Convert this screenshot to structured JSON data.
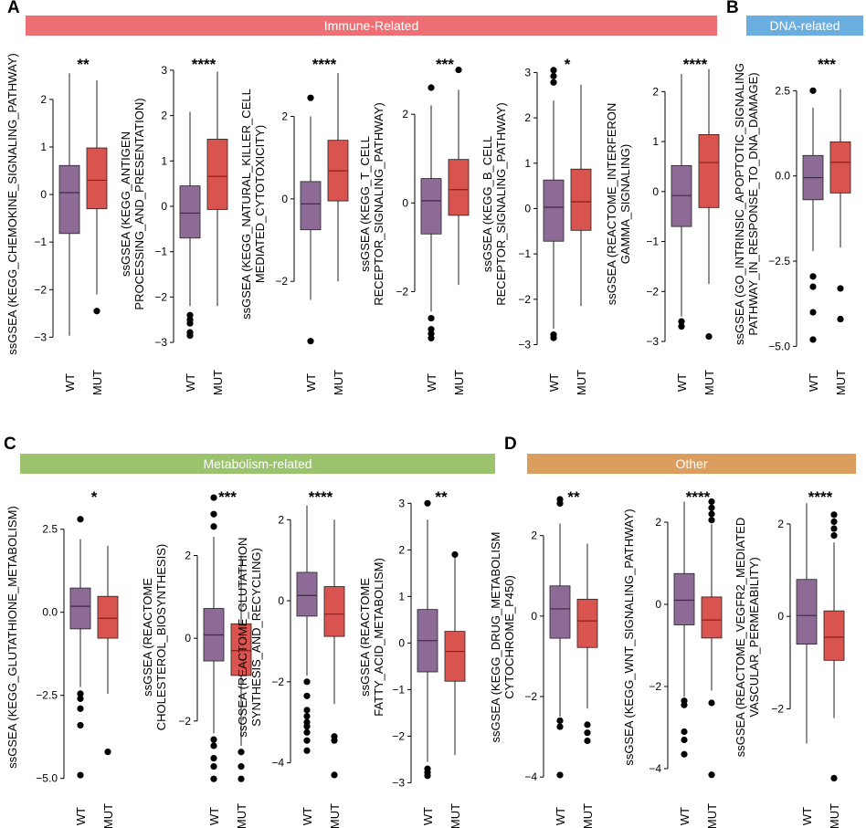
{
  "panels": [
    {
      "letter": "A",
      "banner": "Immune-Related",
      "color": "#ef7074"
    },
    {
      "letter": "B",
      "banner": "DNA-related",
      "color": "#6aaee0"
    },
    {
      "letter": "C",
      "banner": "Metabolism-related",
      "color": "#9bc26c"
    },
    {
      "letter": "D",
      "banner": "Other",
      "color": "#dc9e5e"
    }
  ],
  "colors": {
    "wt": "#8e6b96",
    "mut": "#d9534f",
    "median_wt": "#3d2a44",
    "median_mut": "#8b1e1c"
  },
  "chart_data": [
    {
      "type": "box",
      "ylabel": [
        "ssGSEA (KEGG_CHEMOKINE_SIGNALING_PATHWAY)"
      ],
      "categories": [
        "WT",
        "MUT"
      ],
      "significance": "**",
      "ylim": [
        -3.3,
        2.9
      ],
      "ticks": [
        -3,
        -2,
        -1,
        0,
        1,
        2
      ],
      "ticklabels": [
        "−3",
        "−2",
        "−1",
        "0",
        "1",
        "2"
      ],
      "series": [
        {
          "name": "WT",
          "lower": -2.97,
          "q1": -0.82,
          "median": 0.04,
          "q3": 0.61,
          "upper": 2.55,
          "outliers": []
        },
        {
          "name": "MUT",
          "lower": -2.1,
          "q1": -0.3,
          "median": 0.3,
          "q3": 0.98,
          "upper": 2.4,
          "outliers": [
            -2.45
          ]
        }
      ]
    },
    {
      "type": "box",
      "ylabel": [
        "ssGSEA (KEGG_ANTIGEN",
        "PROCESSING_AND_PRESENTATION)"
      ],
      "categories": [
        "WT",
        "MUT"
      ],
      "significance": "****",
      "ylim": [
        -3.2,
        3.3
      ],
      "ticks": [
        -3,
        -2,
        -1,
        0,
        1,
        2,
        3
      ],
      "ticklabels": [
        "−3",
        "−2",
        "−1",
        "0",
        "1",
        "2",
        "3"
      ],
      "series": [
        {
          "name": "WT",
          "lower": -2.2,
          "q1": -0.7,
          "median": -0.15,
          "q3": 0.45,
          "upper": 2.08,
          "outliers": [
            -2.4,
            -2.5,
            -2.58,
            -2.78,
            -2.85
          ]
        },
        {
          "name": "MUT",
          "lower": -2.2,
          "q1": -0.07,
          "median": 0.66,
          "q3": 1.48,
          "upper": 2.97,
          "outliers": []
        }
      ]
    },
    {
      "type": "box",
      "ylabel": [
        "ssGSEA (KEGG_NATURAL_KILLER_CELL",
        "MEDIATED_CYTOTOXICITY)"
      ],
      "categories": [
        "WT",
        "MUT"
      ],
      "significance": "****",
      "ylim": [
        -3.7,
        3.45
      ],
      "ticks": [
        -2,
        0,
        2
      ],
      "ticklabels": [
        "−2",
        "0",
        "2"
      ],
      "series": [
        {
          "name": "WT",
          "lower": -2.45,
          "q1": -0.75,
          "median": -0.12,
          "q3": 0.42,
          "upper": 2.0,
          "outliers": [
            2.45,
            -3.45
          ]
        },
        {
          "name": "MUT",
          "lower": -2.0,
          "q1": -0.05,
          "median": 0.68,
          "q3": 1.42,
          "upper": 3.05,
          "outliers": []
        }
      ]
    },
    {
      "type": "box",
      "ylabel": [
        "ssGSEA (KEGG_T_CELL",
        "RECEPTOR_SIGNALING_PATHWAY)"
      ],
      "categories": [
        "WT",
        "MUT"
      ],
      "significance": "***",
      "ylim": [
        -3.35,
        3.3
      ],
      "ticks": [
        -2,
        0,
        2
      ],
      "ticklabels": [
        "−2",
        "0",
        "2"
      ],
      "series": [
        {
          "name": "WT",
          "lower": -2.45,
          "q1": -0.7,
          "median": 0.05,
          "q3": 0.55,
          "upper": 2.2,
          "outliers": [
            2.6,
            -2.6,
            -2.85,
            -2.95,
            -3.05
          ]
        },
        {
          "name": "MUT",
          "lower": -1.85,
          "q1": -0.28,
          "median": 0.3,
          "q3": 0.98,
          "upper": 2.55,
          "outliers": [
            3.0
          ]
        }
      ]
    },
    {
      "type": "box",
      "ylabel": [
        "ssGSEA (KEGG_B_CELL",
        "RECEPTOR_SIGNALING_PATHWAY)"
      ],
      "categories": [
        "WT",
        "MUT"
      ],
      "significance": "*",
      "ylim": [
        -3.15,
        3.35
      ],
      "ticks": [
        -3,
        -2,
        -1,
        0,
        1,
        2,
        3
      ],
      "ticklabels": [
        "−3",
        "−2",
        "−1",
        "0",
        "1",
        "2",
        "3"
      ],
      "series": [
        {
          "name": "WT",
          "lower": -2.65,
          "q1": -0.72,
          "median": 0.03,
          "q3": 0.63,
          "upper": 2.38,
          "outliers": [
            3.05,
            2.92,
            2.78,
            -2.78,
            -2.85
          ]
        },
        {
          "name": "MUT",
          "lower": -2.15,
          "q1": -0.48,
          "median": 0.15,
          "q3": 0.87,
          "upper": 2.73,
          "outliers": []
        }
      ]
    },
    {
      "type": "box",
      "ylabel": [
        "ssGSEA (REACTOME_INTERFERON",
        "GAMMA_SIGNALING)"
      ],
      "categories": [
        "WT",
        "MUT"
      ],
      "significance": "****",
      "ylim": [
        -3.2,
        2.7
      ],
      "ticks": [
        -3,
        -2,
        -1,
        0,
        1,
        2
      ],
      "ticklabels": [
        "−3",
        "−2",
        "−1",
        "0",
        "1",
        "2"
      ],
      "series": [
        {
          "name": "WT",
          "lower": -2.5,
          "q1": -0.7,
          "median": -0.08,
          "q3": 0.52,
          "upper": 2.35,
          "outliers": [
            -2.6,
            -2.7
          ]
        },
        {
          "name": "MUT",
          "lower": -1.85,
          "q1": -0.32,
          "median": 0.58,
          "q3": 1.14,
          "upper": 2.45,
          "outliers": [
            -2.9
          ]
        }
      ]
    },
    {
      "type": "box",
      "ylabel": [
        "ssGSEA (GO_INTRINSIC_APOPTOTIC_SIGNALING",
        "PATHWAY_IN_RESPONSE_TO_DNA_DAMAGE)"
      ],
      "categories": [
        "WT",
        "MUT"
      ],
      "significance": "***",
      "ylim": [
        -5.15,
        3.5
      ],
      "ticks": [
        -5.0,
        -2.5,
        0.0,
        2.5
      ],
      "ticklabels": [
        "−5.0",
        "−2.5",
        "0.0",
        "2.5"
      ],
      "series": [
        {
          "name": "WT",
          "lower": -2.2,
          "q1": -0.7,
          "median": -0.05,
          "q3": 0.6,
          "upper": 2.0,
          "outliers": [
            2.5,
            -2.95,
            -3.25,
            -4.0,
            -4.8
          ]
        },
        {
          "name": "MUT",
          "lower": -2.1,
          "q1": -0.5,
          "median": 0.4,
          "q3": 1.0,
          "upper": 2.55,
          "outliers": [
            -3.3,
            -4.2
          ]
        }
      ]
    },
    {
      "type": "box",
      "ylabel": [
        "ssGSEA (KEGG_GLUTATHIONE_METABOLISM)"
      ],
      "categories": [
        "WT",
        "MUT"
      ],
      "significance": "*",
      "ylim": [
        -5.2,
        3.7
      ],
      "ticks": [
        -5.0,
        -2.5,
        0.0,
        2.5
      ],
      "ticklabels": [
        "−5.0",
        "−2.5",
        "0.0",
        "2.5"
      ],
      "series": [
        {
          "name": "WT",
          "lower": -2.25,
          "q1": -0.5,
          "median": 0.18,
          "q3": 0.73,
          "upper": 2.2,
          "outliers": [
            2.8,
            -2.45,
            -2.6,
            -2.9,
            -3.4,
            -4.9
          ]
        },
        {
          "name": "MUT",
          "lower": -2.45,
          "q1": -0.78,
          "median": -0.18,
          "q3": 0.48,
          "upper": 2.0,
          "outliers": [
            -4.2
          ]
        }
      ]
    },
    {
      "type": "box",
      "ylabel": [
        "ssGSEA (REACTOME",
        "CHOLESTEROL_BIOSYNTHESIS)"
      ],
      "categories": [
        "WT",
        "MUT"
      ],
      "significance": "***",
      "ylim": [
        -3.55,
        3.6
      ],
      "ticks": [
        -2,
        0,
        2
      ],
      "ticklabels": [
        "−2",
        "0",
        "2"
      ],
      "series": [
        {
          "name": "WT",
          "lower": -2.3,
          "q1": -0.55,
          "median": 0.08,
          "q3": 0.72,
          "upper": 2.45,
          "outliers": [
            3.4,
            3.0,
            2.7,
            -2.45,
            -2.6,
            -2.9,
            -3.1,
            -3.4
          ]
        },
        {
          "name": "MUT",
          "lower": -2.6,
          "q1": -0.9,
          "median": -0.3,
          "q3": 0.35,
          "upper": 2.0,
          "outliers": [
            -2.75,
            -3.1,
            -3.4
          ]
        }
      ]
    },
    {
      "type": "box",
      "ylabel": [
        "ssGSEA (REACTOME_GLUTATHION",
        "SYNTHESIS_AND_RECYCLING)"
      ],
      "categories": [
        "WT",
        "MUT"
      ],
      "significance": "****",
      "ylim": [
        -4.55,
        2.75
      ],
      "ticks": [
        -4,
        -2,
        0,
        2
      ],
      "ticklabels": [
        "−4",
        "−2",
        "0",
        "2"
      ],
      "series": [
        {
          "name": "WT",
          "lower": -1.85,
          "q1": -0.38,
          "median": 0.13,
          "q3": 0.7,
          "upper": 2.35,
          "outliers": [
            -2.0,
            -2.35,
            -2.7,
            -2.85,
            -3.0,
            -3.1,
            -3.25,
            -3.45,
            -3.7
          ]
        },
        {
          "name": "MUT",
          "lower": -2.55,
          "q1": -0.88,
          "median": -0.33,
          "q3": 0.35,
          "upper": 2.0,
          "outliers": [
            -3.35,
            -3.45,
            -4.3
          ]
        }
      ]
    },
    {
      "type": "box",
      "ylabel": [
        "ssGSEA (REACTOME",
        "FATTY_ACID_METABOLISM)"
      ],
      "categories": [
        "WT",
        "MUT"
      ],
      "significance": "**",
      "ylim": [
        -3.05,
        3.3
      ],
      "ticks": [
        -3,
        -2,
        -1,
        0,
        1,
        2,
        3
      ],
      "ticklabels": [
        "−3",
        "−2",
        "−1",
        "0",
        "1",
        "2",
        "3"
      ],
      "series": [
        {
          "name": "WT",
          "lower": -2.55,
          "q1": -0.62,
          "median": 0.05,
          "q3": 0.72,
          "upper": 2.65,
          "outliers": [
            3.0,
            -2.7,
            -2.78,
            -2.85
          ]
        },
        {
          "name": "MUT",
          "lower": -2.4,
          "q1": -0.82,
          "median": -0.18,
          "q3": 0.25,
          "upper": 1.85,
          "outliers": [
            1.9
          ]
        }
      ]
    },
    {
      "type": "box",
      "ylabel": [
        "ssGSEA (KEGG_DRUG_METABOLISM",
        "CYTOCHROME_P450)"
      ],
      "categories": [
        "WT",
        "MUT"
      ],
      "significance": "**",
      "ylim": [
        -4.2,
        3.15
      ],
      "ticks": [
        -4,
        -2,
        0,
        2
      ],
      "ticklabels": [
        "−4",
        "−2",
        "0",
        "2"
      ],
      "series": [
        {
          "name": "WT",
          "lower": -2.5,
          "q1": -0.55,
          "median": 0.18,
          "q3": 0.75,
          "upper": 2.3,
          "outliers": [
            2.9,
            2.8,
            -2.6,
            -2.75,
            -3.95
          ]
        },
        {
          "name": "MUT",
          "lower": -2.3,
          "q1": -0.78,
          "median": -0.12,
          "q3": 0.42,
          "upper": 1.8,
          "outliers": [
            -2.7,
            -2.9,
            -3.1
          ]
        }
      ]
    },
    {
      "type": "box",
      "ylabel": [
        "ssGSEA (KEGG_WNT_SIGNALING_PATHWAY)"
      ],
      "categories": [
        "WT",
        "MUT"
      ],
      "significance": "****",
      "ylim": [
        -4.4,
        2.8
      ],
      "ticks": [
        -4,
        -2,
        0,
        2
      ],
      "ticklabels": [
        "−4",
        "−2",
        "0",
        "2"
      ],
      "series": [
        {
          "name": "WT",
          "lower": -2.25,
          "q1": -0.5,
          "median": 0.1,
          "q3": 0.75,
          "upper": 2.5,
          "outliers": [
            -2.35,
            -2.45,
            -3.1,
            -3.3,
            -3.65
          ]
        },
        {
          "name": "MUT",
          "lower": -2.1,
          "q1": -0.82,
          "median": -0.38,
          "q3": 0.18,
          "upper": 1.95,
          "outliers": [
            2.5,
            2.35,
            2.2,
            2.05,
            -2.4,
            -4.15
          ]
        }
      ]
    },
    {
      "type": "box",
      "ylabel": [
        "ssGSEA (REACTOME_VEGFR2_MEDIATED",
        "VASCULAR_PERMEABILITY)"
      ],
      "categories": [
        "WT",
        "MUT"
      ],
      "significance": "****",
      "ylim": [
        -3.65,
        2.75
      ],
      "ticks": [
        -2,
        0,
        2
      ],
      "ticklabels": [
        "−2",
        "0",
        "2"
      ],
      "series": [
        {
          "name": "WT",
          "lower": -2.75,
          "q1": -0.6,
          "median": 0.02,
          "q3": 0.8,
          "upper": 2.45,
          "outliers": []
        },
        {
          "name": "MUT",
          "lower": -2.2,
          "q1": -0.95,
          "median": -0.45,
          "q3": 0.12,
          "upper": 1.6,
          "outliers": [
            2.2,
            2.05,
            1.9,
            1.75,
            -3.5
          ]
        }
      ]
    }
  ]
}
